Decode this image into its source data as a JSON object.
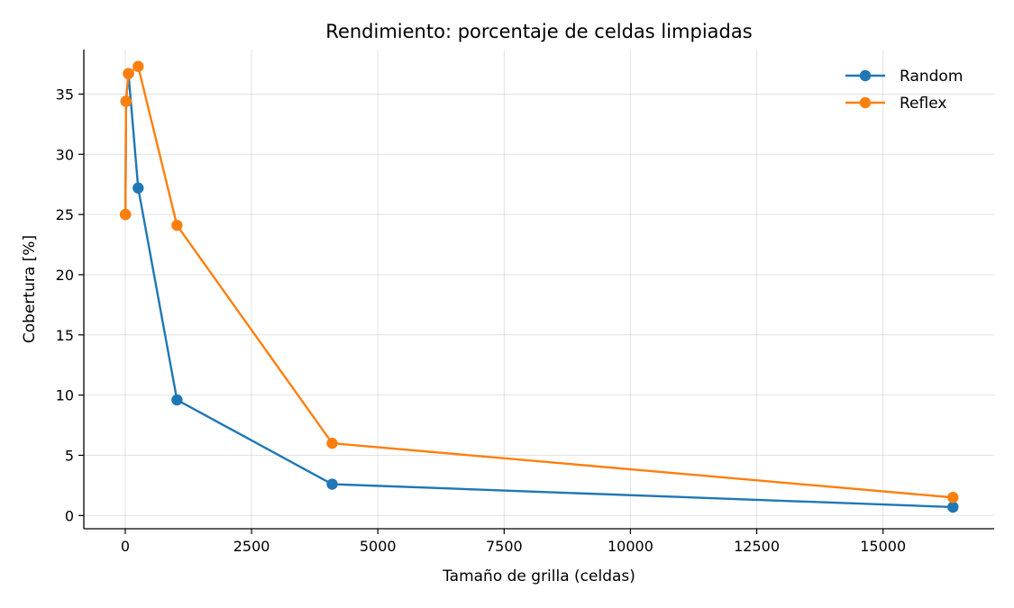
{
  "chart_data": {
    "type": "line",
    "title": "Rendimiento: porcentaje de celdas limpiadas",
    "xlabel": "Tamaño de grilla (celdas)",
    "ylabel": "Cobertura [%]",
    "xlim": [
      -820,
      17200
    ],
    "ylim": [
      -1.1,
      38.7
    ],
    "x_ticks": [
      0,
      2500,
      5000,
      7500,
      10000,
      12500,
      15000
    ],
    "y_ticks": [
      0,
      5,
      10,
      15,
      20,
      25,
      30,
      35
    ],
    "grid": true,
    "legend_position": "top-right",
    "series": [
      {
        "name": "Random",
        "color": "#1f77b4",
        "x": [
          4,
          16,
          64,
          256,
          1024,
          4096,
          16384
        ],
        "y": [
          25.0,
          34.4,
          36.7,
          27.2,
          9.6,
          2.6,
          0.7
        ]
      },
      {
        "name": "Reflex",
        "color": "#ff7f0e",
        "x": [
          4,
          16,
          64,
          256,
          1024,
          4096,
          16384
        ],
        "y": [
          25.0,
          34.4,
          36.7,
          37.3,
          24.1,
          6.0,
          1.5
        ]
      }
    ]
  }
}
